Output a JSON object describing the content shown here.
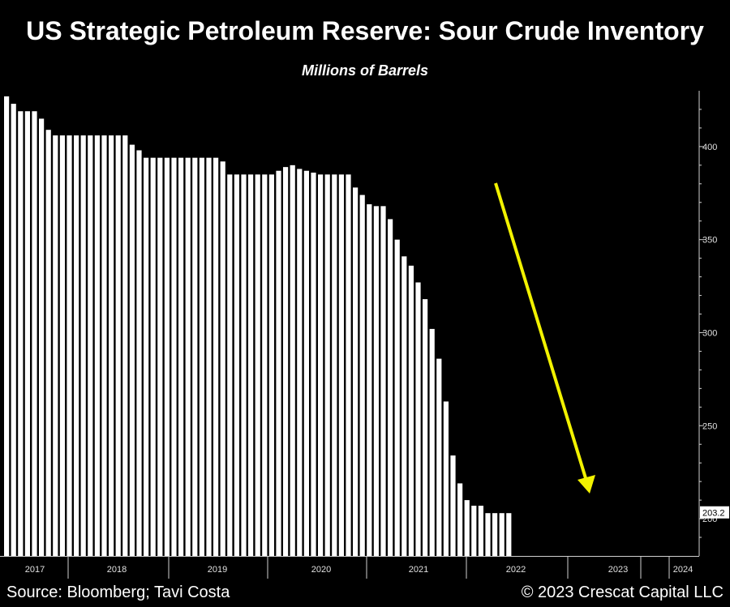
{
  "title": "US Strategic Petroleum Reserve: Sour Crude Inventory",
  "subtitle": "Millions of Barrels",
  "footer": {
    "source": "Source: Bloomberg; Tavi Costa",
    "copyright": "© 2023 Crescat Capital LLC"
  },
  "chart_data": {
    "type": "bar",
    "ylim": [
      180,
      430
    ],
    "yticks": [
      200,
      250,
      300,
      350,
      400
    ],
    "year_labels": [
      "2017",
      "2018",
      "2019",
      "2020",
      "2021",
      "2022",
      "2023",
      "2024"
    ],
    "last_value_label": "203.2",
    "annotation": "downward trend arrow (yellow)",
    "colors": {
      "bars": "#ffffff",
      "arrow": "#f2f200",
      "background": "#000000"
    },
    "values": [
      427,
      423,
      419,
      419,
      419,
      415,
      409,
      406,
      406,
      406,
      406,
      406,
      406,
      406,
      406,
      406,
      406,
      406,
      401,
      398,
      394,
      394,
      394,
      394,
      394,
      394,
      394,
      394,
      394,
      394,
      394,
      392,
      385,
      385,
      385,
      385,
      385,
      385,
      385,
      387,
      389,
      390,
      388,
      387,
      386,
      385,
      385,
      385,
      385,
      385,
      378,
      374,
      369,
      368,
      368,
      361,
      350,
      341,
      336,
      327,
      318,
      302,
      286,
      263,
      234,
      219,
      210,
      207,
      207,
      203,
      203,
      203,
      203
    ]
  }
}
